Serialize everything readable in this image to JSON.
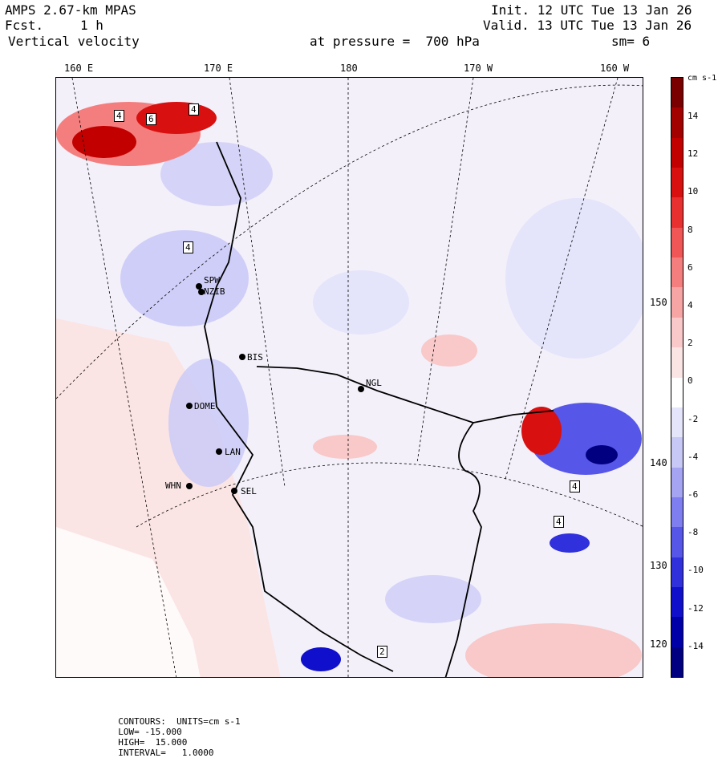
{
  "header": {
    "model": "AMPS 2.67-km MPAS",
    "fcst_label": "Fcst.",
    "fcst_value": "1 h",
    "field": "Vertical velocity",
    "init": "Init. 12 UTC Tue 13 Jan 26",
    "valid": "Valid. 13 UTC Tue 13 Jan 26",
    "pressure": "at pressure =  700 hPa",
    "smoothing": "sm= 6"
  },
  "longitude_labels": [
    "160 E",
    "170 E",
    "180",
    "170 W",
    "160 W"
  ],
  "latitude_labels": [
    "150 W",
    "140 W",
    "130 W",
    "120 W"
  ],
  "stations": [
    "SPW",
    "NZIB",
    "BIS",
    "NGL",
    "DOME",
    "LAN",
    "WHN",
    "SEL"
  ],
  "contour_boxes": [
    "4",
    "6",
    "4",
    "4",
    "4",
    "4",
    "2"
  ],
  "colorbar": {
    "unit": "cm s-1",
    "ticks": [
      "14",
      "12",
      "10",
      "8",
      "6",
      "4",
      "2",
      "0",
      "-2",
      "-4",
      "-6",
      "-8",
      "-10",
      "-12",
      "-14"
    ],
    "colors": [
      "#7a0000",
      "#a30000",
      "#c20000",
      "#d81010",
      "#e83030",
      "#f05656",
      "#f47e7e",
      "#f7a4a4",
      "#f9c8c8",
      "#fbe4e4",
      "#ffffff",
      "#e4e4fb",
      "#c8c8f7",
      "#a4a4f2",
      "#7e7ef0",
      "#5656e8",
      "#3030dc",
      "#1010cc",
      "#0000a8",
      "#000080"
    ]
  },
  "footer": {
    "contours": "CONTOURS:  UNITS=cm s-1",
    "low": "LOW= -15.000",
    "high": "HIGH=  15.000",
    "interval": "INTERVAL=   1.0000"
  }
}
